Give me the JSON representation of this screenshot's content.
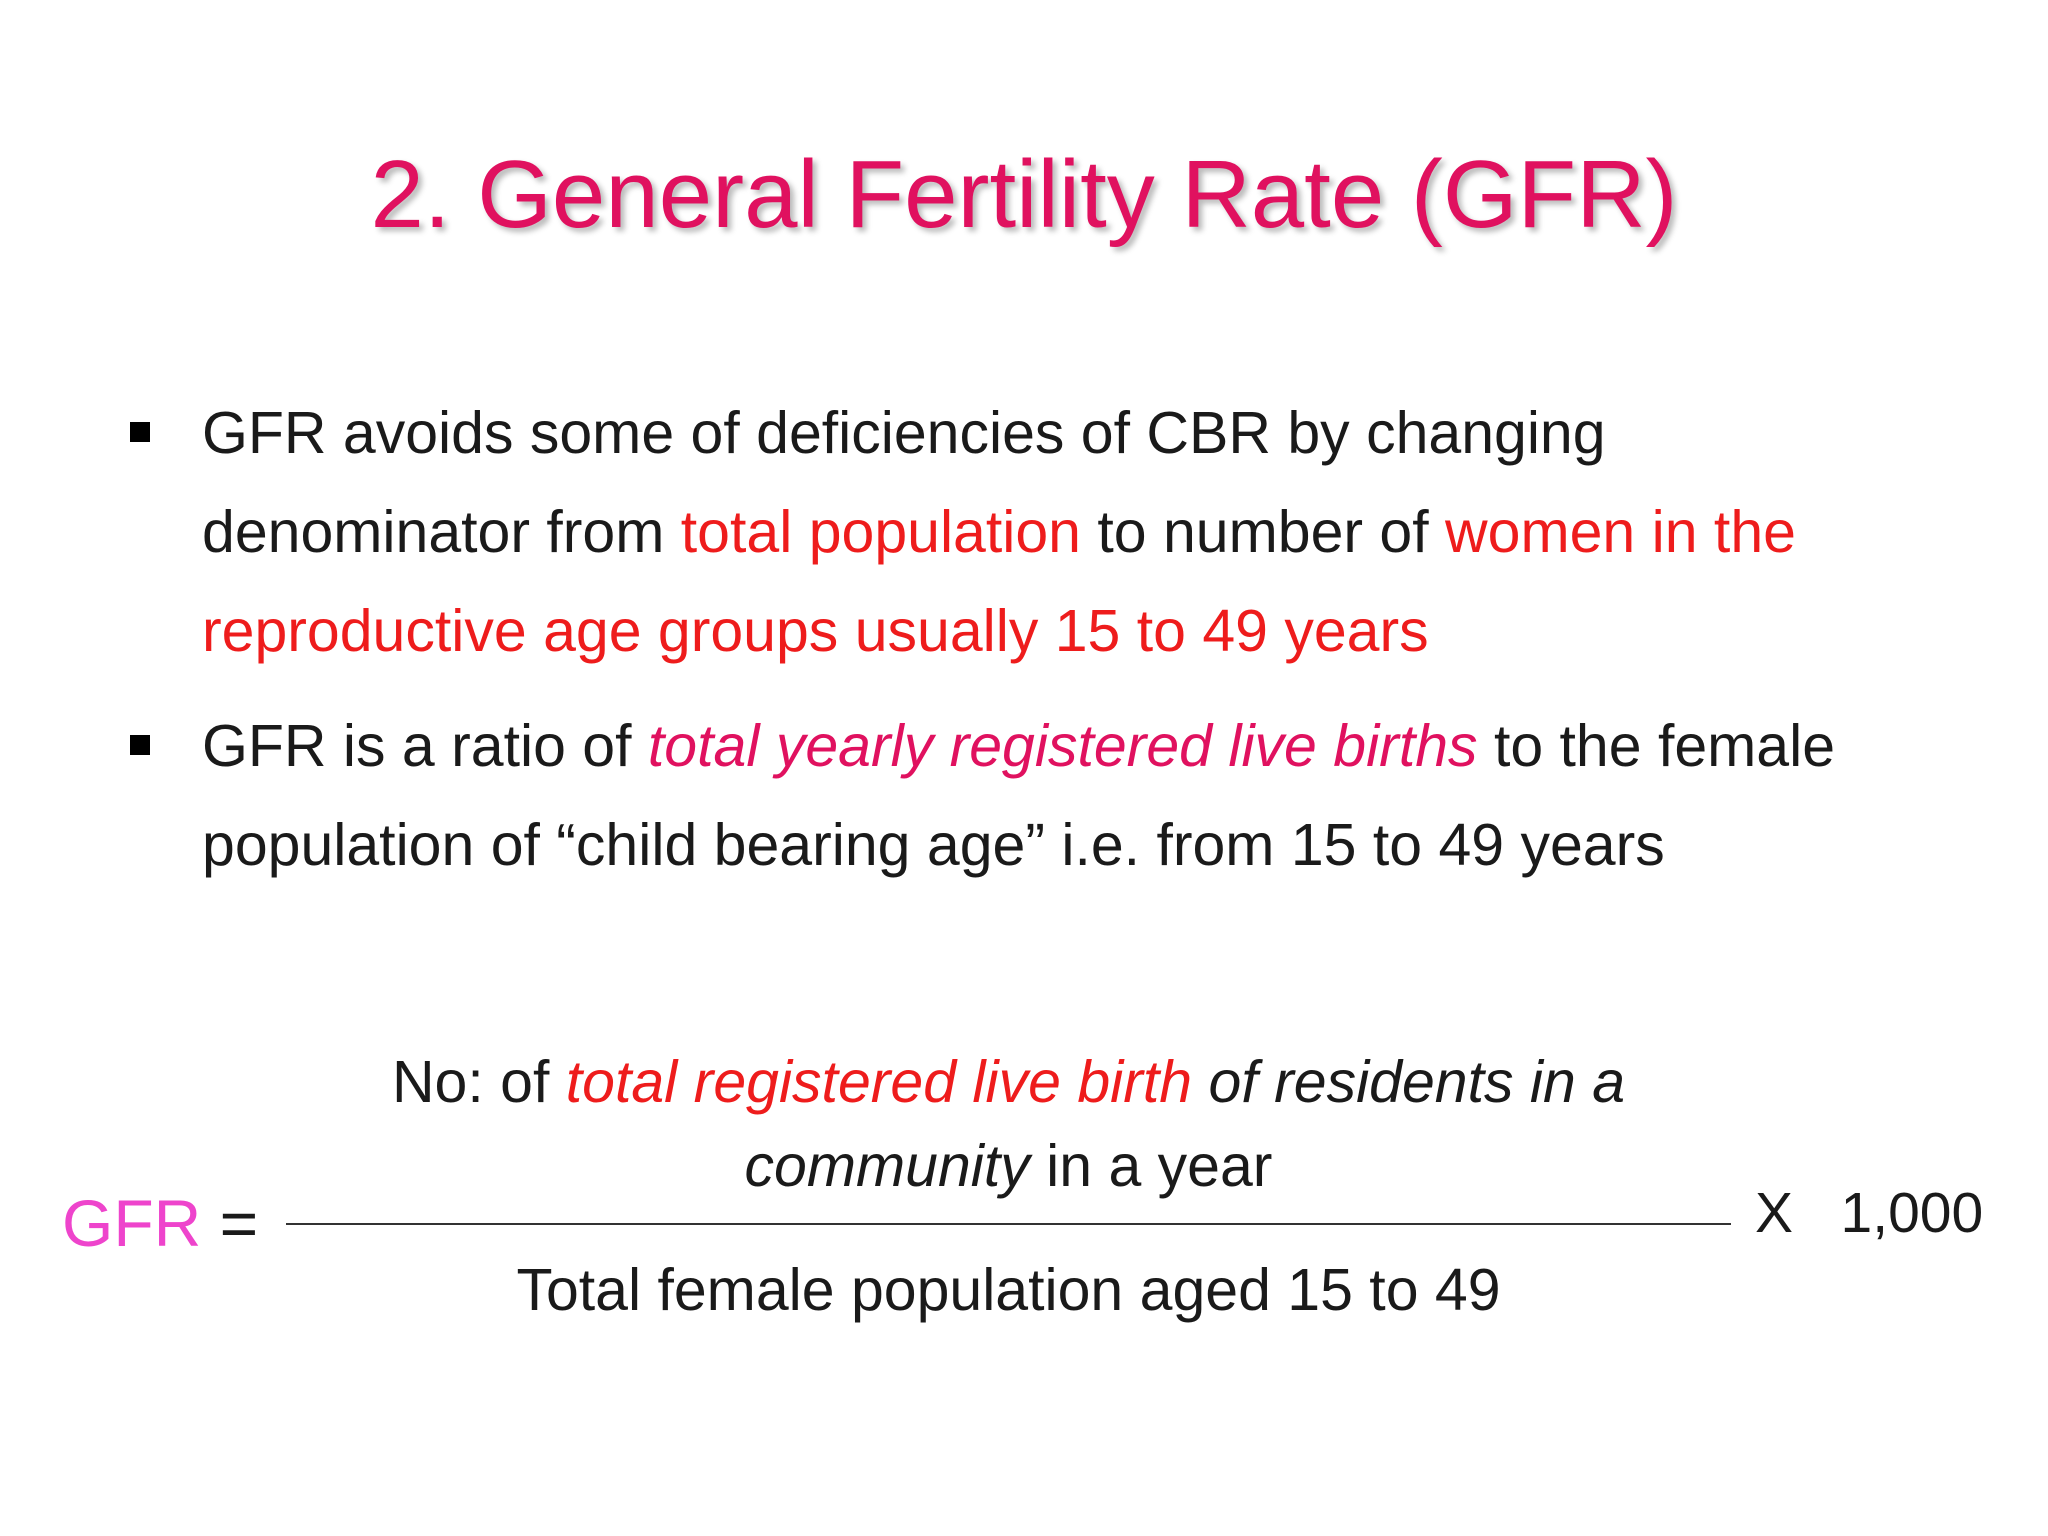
{
  "slide": {
    "title": "2. General Fertility Rate (GFR)",
    "colors": {
      "title": "#e0115f",
      "highlight_red": "#ee1c1c",
      "highlight_magenta": "#e0115f",
      "gfr_label": "#ee44cc",
      "body_text": "#1a1a1a"
    },
    "bullets": [
      {
        "part1": "GFR avoids some of deficiencies of CBR by changing denominator from ",
        "highlight1": "total population",
        "part2": " to number of ",
        "highlight2": "women in the reproductive age groups usually 15 to 49 years"
      },
      {
        "part1": "GFR is a ratio of ",
        "highlight1": "total yearly registered live births",
        "part2": " to the female population of “child bearing age” i.e. from 15 to 49 years"
      }
    ],
    "formula": {
      "lhs_label": "GFR",
      "equals": " =",
      "numerator": {
        "prefix": "No: of ",
        "highlight": "total registered live birth",
        "italic_part": " of residents in a community",
        "suffix": " in a year"
      },
      "denominator": "Total female population aged 15 to 49",
      "multiplier": "X   1,000"
    }
  }
}
